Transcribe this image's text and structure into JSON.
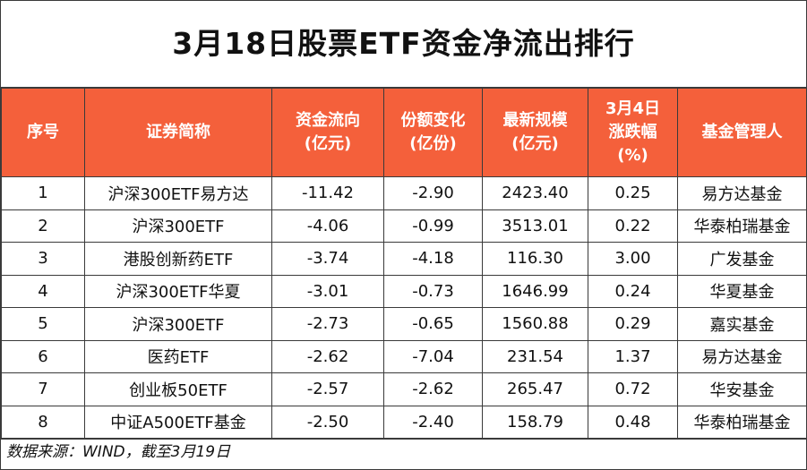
{
  "title": "3月18日股票ETF资金净流出排行",
  "headers": [
    [
      "序号"
    ],
    [
      "证券简称"
    ],
    [
      "资金流向",
      "(亿元)"
    ],
    [
      "份额变化",
      "(亿份)"
    ],
    [
      "最新规模",
      "(亿元)"
    ],
    [
      "3月4日",
      "涨跌幅",
      "(%)"
    ],
    [
      "基金管理人"
    ]
  ],
  "rows": [
    [
      "1",
      "沪深300ETF易方达",
      "-11.42",
      "-2.90",
      "2423.40",
      "0.25",
      "易方达基金"
    ],
    [
      "2",
      "沪深300ETF",
      "-4.06",
      "-0.99",
      "3513.01",
      "0.22",
      "华泰柏瑞基金"
    ],
    [
      "3",
      "港股创新药ETF",
      "-3.74",
      "-4.18",
      "116.30",
      "3.00",
      "广发基金"
    ],
    [
      "4",
      "沪深300ETF华夏",
      "-3.01",
      "-0.73",
      "1646.99",
      "0.24",
      "华夏基金"
    ],
    [
      "5",
      "沪深300ETF",
      "-2.73",
      "-0.65",
      "1560.88",
      "0.29",
      "嘉实基金"
    ],
    [
      "6",
      "医药ETF",
      "-2.62",
      "-7.04",
      "231.54",
      "1.37",
      "易方达基金"
    ],
    [
      "7",
      "创业板50ETF",
      "-2.57",
      "-2.62",
      "265.47",
      "0.72",
      "华安基金"
    ],
    [
      "8",
      "中证A500ETF基金",
      "-2.50",
      "-2.40",
      "158.79",
      "0.48",
      "华泰柏瑞基金"
    ]
  ],
  "source": "数据来源：WIND，截至3月19日",
  "colors": {
    "header_bg": "#f4603b",
    "header_text": "#ffffff",
    "border": "#3a3a3a"
  }
}
